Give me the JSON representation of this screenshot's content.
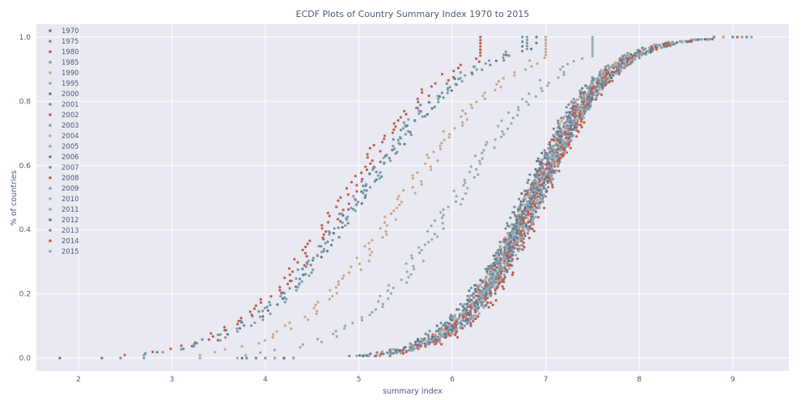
{
  "chart_data": {
    "type": "scatter",
    "title": "ECDF Plots of Country Summary Index 1970 to 2015",
    "xlabel": "summary index",
    "ylabel": "% of countries",
    "xlim": [
      1.55,
      9.6
    ],
    "ylim": [
      -0.04,
      1.04
    ],
    "x_ticks": [
      2,
      3,
      4,
      5,
      6,
      7,
      8,
      9
    ],
    "y_ticks": [
      "0.0",
      "0.2",
      "0.4",
      "0.6",
      "0.8",
      "1.0"
    ],
    "grid": true,
    "legend_position": "top-left",
    "colors": {
      "background": "#e9e9f1",
      "grid": "#ffffff",
      "text": "#4b5c7d"
    },
    "series": [
      {
        "name": "1970",
        "color": "#5b7a8e",
        "n": 55,
        "median": 5.0,
        "spread": 0.95,
        "min": 1.8,
        "max": 6.9
      },
      {
        "name": "1975",
        "color": "#6e8da3",
        "n": 70,
        "median": 5.0,
        "spread": 0.95,
        "min": 2.45,
        "max": 6.75
      },
      {
        "name": "1980",
        "color": "#c45a4a",
        "n": 105,
        "median": 4.85,
        "spread": 0.9,
        "min": 2.25,
        "max": 6.3
      },
      {
        "name": "1985",
        "color": "#7f9aaa",
        "n": 110,
        "median": 5.0,
        "spread": 0.9,
        "min": 2.7,
        "max": 6.8
      },
      {
        "name": "1990",
        "color": "#c9a58c",
        "n": 110,
        "median": 5.5,
        "spread": 0.9,
        "min": 3.3,
        "max": 7.0
      },
      {
        "name": "1995",
        "color": "#93a9b6",
        "n": 120,
        "median": 6.05,
        "spread": 0.85,
        "min": 3.7,
        "max": 7.5
      },
      {
        "name": "2000",
        "color": "#5b7a8e",
        "n": 120,
        "median": 6.8,
        "spread": 0.65,
        "min": 3.75,
        "max": 8.8
      },
      {
        "name": "2001",
        "color": "#6e8da3",
        "n": 120,
        "median": 6.8,
        "spread": 0.65,
        "min": 3.8,
        "max": 8.8
      },
      {
        "name": "2002",
        "color": "#c45a4a",
        "n": 123,
        "median": 6.85,
        "spread": 0.63,
        "min": 3.9,
        "max": 8.9
      },
      {
        "name": "2003",
        "color": "#7f9aaa",
        "n": 125,
        "median": 6.85,
        "spread": 0.63,
        "min": 4.0,
        "max": 8.9
      },
      {
        "name": "2004",
        "color": "#c9a58c",
        "n": 127,
        "median": 6.85,
        "spread": 0.62,
        "min": 4.1,
        "max": 8.9
      },
      {
        "name": "2005",
        "color": "#93a9b6",
        "n": 130,
        "median": 6.9,
        "spread": 0.62,
        "min": 4.2,
        "max": 9.0
      },
      {
        "name": "2006",
        "color": "#5b7a8e",
        "n": 135,
        "median": 6.9,
        "spread": 0.62,
        "min": 4.2,
        "max": 9.0
      },
      {
        "name": "2007",
        "color": "#6e8da3",
        "n": 140,
        "median": 6.9,
        "spread": 0.62,
        "min": 4.3,
        "max": 9.0
      },
      {
        "name": "2008",
        "color": "#c45a4a",
        "n": 140,
        "median": 6.95,
        "spread": 0.6,
        "min": 4.1,
        "max": 9.05
      },
      {
        "name": "2009",
        "color": "#7f9aaa",
        "n": 140,
        "median": 6.9,
        "spread": 0.62,
        "min": 4.0,
        "max": 9.1
      },
      {
        "name": "2010",
        "color": "#c9a58c",
        "n": 150,
        "median": 6.85,
        "spread": 0.65,
        "min": 4.1,
        "max": 9.1
      },
      {
        "name": "2011",
        "color": "#93a9b6",
        "n": 150,
        "median": 6.85,
        "spread": 0.65,
        "min": 4.2,
        "max": 9.1
      },
      {
        "name": "2012",
        "color": "#5b7a8e",
        "n": 150,
        "median": 6.85,
        "spread": 0.65,
        "min": 4.2,
        "max": 9.15
      },
      {
        "name": "2013",
        "color": "#6e8da3",
        "n": 155,
        "median": 6.85,
        "spread": 0.65,
        "min": 4.3,
        "max": 9.15
      },
      {
        "name": "2014",
        "color": "#c45a4a",
        "n": 157,
        "median": 6.9,
        "spread": 0.62,
        "min": 4.3,
        "max": 9.2
      },
      {
        "name": "2015",
        "color": "#93a9b6",
        "n": 160,
        "median": 6.9,
        "spread": 0.62,
        "min": 4.3,
        "max": 9.2
      }
    ]
  }
}
